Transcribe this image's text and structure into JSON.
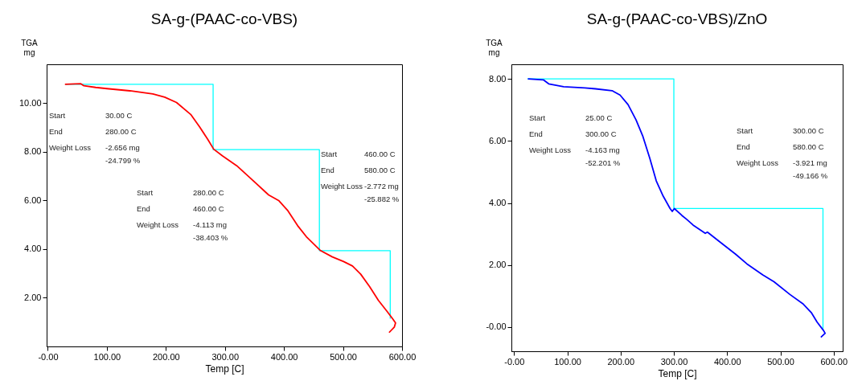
{
  "chart_data": [
    {
      "type": "line",
      "title": "SA-g-(PAAC-co-VBS)",
      "xlabel": "Temp  [C]",
      "ylabel": "TGA\nmg",
      "xlim": [
        -2,
        600
      ],
      "ylim": [
        0,
        11.6
      ],
      "xticks": [
        {
          "value": 0,
          "label": "-0.00"
        },
        {
          "value": 100,
          "label": "100.00"
        },
        {
          "value": 200,
          "label": "200.00"
        },
        {
          "value": 300,
          "label": "300.00"
        },
        {
          "value": 400,
          "label": "400.00"
        },
        {
          "value": 500,
          "label": "500.00"
        },
        {
          "value": 600,
          "label": "600.00"
        }
      ],
      "yticks": [
        {
          "value": 2,
          "label": "2.00"
        },
        {
          "value": 4,
          "label": "4.00"
        },
        {
          "value": 6,
          "label": "6.00"
        },
        {
          "value": 8,
          "label": "8.00"
        },
        {
          "value": 10,
          "label": "10.00"
        }
      ],
      "grid": false,
      "marker": "none",
      "line_style": "solid",
      "series": [
        {
          "color": "#ff0000",
          "x": [
            29,
            56,
            61,
            81,
            100,
            139,
            178,
            198,
            218,
            242,
            257,
            271,
            281,
            296,
            320,
            345,
            374,
            391,
            406,
            423,
            438,
            462,
            482,
            501,
            516,
            530,
            545,
            560,
            575,
            584,
            589,
            587,
            578
          ],
          "values": [
            10.78,
            10.8,
            10.72,
            10.65,
            10.6,
            10.51,
            10.38,
            10.25,
            10.03,
            9.54,
            9.03,
            8.51,
            8.11,
            7.83,
            7.43,
            6.88,
            6.23,
            6.0,
            5.6,
            4.97,
            4.51,
            3.94,
            3.68,
            3.49,
            3.31,
            2.97,
            2.46,
            1.89,
            1.43,
            1.14,
            0.97,
            0.8,
            0.57
          ]
        },
        {
          "color": "#00ffff",
          "x": [
            30,
            280,
            280,
            460,
            460,
            580,
            580
          ],
          "values": [
            10.78,
            10.78,
            8.09,
            8.09,
            3.94,
            3.94,
            1.14
          ]
        }
      ],
      "annotations": [
        "Start",
        "30.00 C",
        "End",
        "280.00 C",
        "Weight Loss",
        "-2.656 mg",
        "-24.799 %",
        "Start",
        "280.00 C",
        "End",
        "460.00 C",
        "Weight Loss",
        "-4.113 mg",
        "-38.403 %",
        "Start",
        "460.00 C",
        "End",
        "580.00 C",
        "Weight Loss",
        "-2.772 mg",
        "-25.882 %"
      ]
    },
    {
      "type": "line",
      "title": "SA-g-(PAAC-co-VBS)/ZnO",
      "xlabel": "Temp  [C]",
      "ylabel": "TGA\nmg",
      "xlim": [
        -5,
        617
      ],
      "ylim": [
        -0.78,
        8.47
      ],
      "xticks": [
        {
          "value": 0,
          "label": "-0.00"
        },
        {
          "value": 100,
          "label": "100.00"
        },
        {
          "value": 200,
          "label": "200.00"
        },
        {
          "value": 300,
          "label": "300.00"
        },
        {
          "value": 400,
          "label": "400.00"
        },
        {
          "value": 500,
          "label": "500.00"
        },
        {
          "value": 600,
          "label": "600.00"
        }
      ],
      "yticks": [
        {
          "value": 0,
          "label": "-0.00"
        },
        {
          "value": 2,
          "label": "2.00"
        },
        {
          "value": 4,
          "label": "4.00"
        },
        {
          "value": 6,
          "label": "6.00"
        },
        {
          "value": 8,
          "label": "8.00"
        }
      ],
      "grid": false,
      "marker": "none",
      "line_style": "solid",
      "series": [
        {
          "color": "#0000ff",
          "x": [
            26,
            55,
            65,
            93,
            133,
            153,
            184,
            199,
            214,
            229,
            242,
            255,
            267,
            280,
            293,
            297,
            301,
            315,
            325,
            336,
            359,
            363,
            386,
            416,
            437,
            467,
            488,
            518,
            543,
            558,
            569,
            581,
            584,
            576
          ],
          "values": [
            8.0,
            7.97,
            7.84,
            7.75,
            7.71,
            7.68,
            7.62,
            7.48,
            7.17,
            6.68,
            6.14,
            5.43,
            4.71,
            4.22,
            3.82,
            3.73,
            3.82,
            3.6,
            3.46,
            3.29,
            3.02,
            3.06,
            2.75,
            2.35,
            2.04,
            1.68,
            1.46,
            1.05,
            0.74,
            0.47,
            0.16,
            -0.11,
            -0.2,
            -0.33
          ]
        },
        {
          "color": "#00ffff",
          "x": [
            25,
            300,
            300,
            580,
            580
          ],
          "values": [
            8.0,
            8.0,
            3.82,
            3.82,
            -0.1
          ]
        }
      ],
      "annotations": [
        "Start",
        "25.00 C",
        "End",
        "300.00 C",
        "Weight Loss",
        "-4.163 mg",
        "-52.201 %",
        "Start",
        "300.00 C",
        "End",
        "580.00 C",
        "Weight Loss",
        "-3.921 mg",
        "-49.166 %"
      ]
    }
  ]
}
